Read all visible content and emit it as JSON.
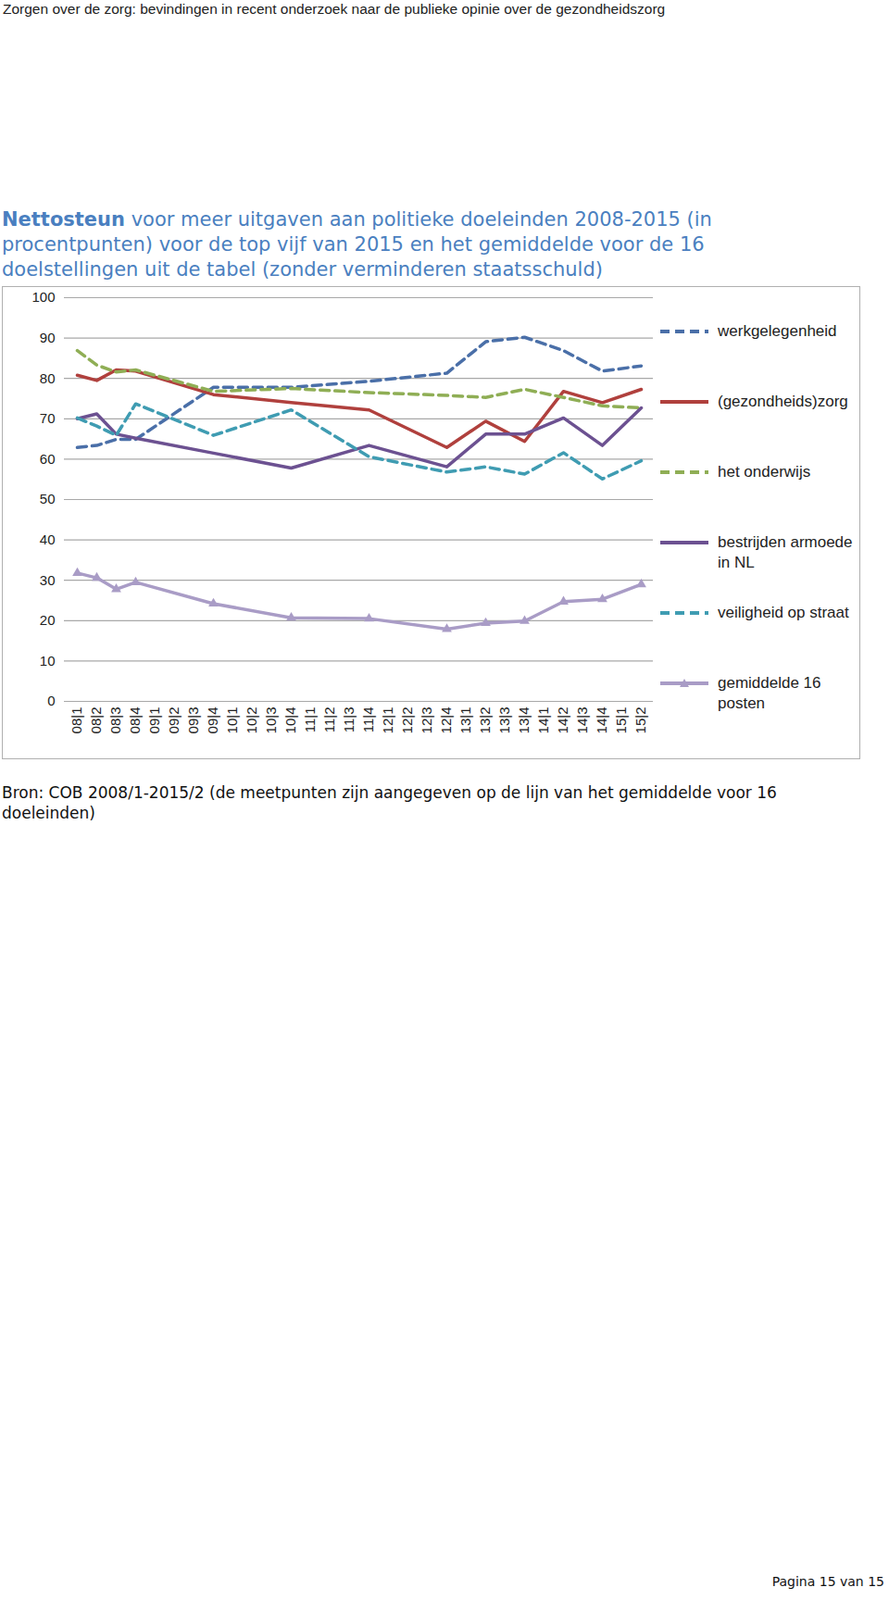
{
  "page": {
    "header": "Zorgen over de zorg: bevindingen in recent onderzoek naar de publieke opinie over de gezondheidszorg",
    "footer": "Pagina 15 van 15"
  },
  "chart_data": {
    "type": "line",
    "title": "Nettosteun voor meer uitgaven aan politieke doeleinden 2008-2015 (in procentpunten) voor de top vijf van 2015 en het gemiddelde voor de 16 doelstellingen uit de tabel (zonder verminderen staatsschuld)",
    "caption": "Bron: COB 2008/1-2015/2 (de meetpunten zijn aangegeven op de lijn van het gemiddelde voor 16 doeleinden)",
    "x": [
      "08|1",
      "08|2",
      "08|3",
      "08|4",
      "09|1",
      "09|2",
      "09|3",
      "09|4",
      "10|1",
      "10|2",
      "10|3",
      "10|4",
      "11|1",
      "11|2",
      "11|3",
      "11|4",
      "12|1",
      "12|2",
      "12|3",
      "12|4",
      "13|1",
      "13|2",
      "13|3",
      "13|4",
      "14|1",
      "14|2",
      "14|3",
      "14|4",
      "15|1",
      "15|2"
    ],
    "series": [
      {
        "name": "werkgelegenheid",
        "color": "#4a6fa8",
        "line_style": "dashed",
        "values": [
          62.9,
          63.4,
          64.9,
          64.9,
          null,
          null,
          null,
          77.8,
          null,
          null,
          null,
          77.8,
          null,
          null,
          null,
          79.3,
          null,
          null,
          null,
          81.3,
          null,
          89.1,
          null,
          90.2,
          null,
          86.9,
          null,
          81.8,
          null,
          83.1
        ]
      },
      {
        "name": "(gezondheids)zorg",
        "color": "#b0403d",
        "line_style": "solid",
        "values": [
          80.8,
          79.5,
          82.1,
          81.8,
          null,
          null,
          null,
          76.0,
          null,
          null,
          null,
          74.0,
          null,
          null,
          null,
          72.2,
          null,
          null,
          null,
          62.9,
          null,
          69.4,
          null,
          64.4,
          null,
          76.8,
          null,
          74.0,
          null,
          77.3
        ]
      },
      {
        "name": "het onderwijs",
        "color": "#8fae55",
        "line_style": "dashed",
        "values": [
          86.9,
          83.3,
          81.6,
          82.1,
          null,
          null,
          null,
          76.8,
          null,
          null,
          null,
          77.5,
          null,
          null,
          null,
          76.5,
          null,
          null,
          null,
          75.8,
          null,
          75.3,
          null,
          77.3,
          null,
          75.3,
          null,
          73.2,
          null,
          72.7
        ]
      },
      {
        "name": "bestrijden armoede in NL",
        "color": "#6c5191",
        "line_style": "solid",
        "values": [
          70.0,
          71.2,
          66.2,
          65.2,
          null,
          null,
          null,
          61.5,
          null,
          null,
          null,
          57.8,
          null,
          null,
          null,
          63.4,
          null,
          null,
          null,
          58.1,
          null,
          66.2,
          null,
          66.2,
          null,
          70.2,
          null,
          63.4,
          null,
          72.7
        ]
      },
      {
        "name": "veiligheid op straat",
        "color": "#3f9cb2",
        "line_style": "dashed",
        "values": [
          70.2,
          68.2,
          65.9,
          73.7,
          null,
          null,
          null,
          65.9,
          null,
          null,
          null,
          72.2,
          null,
          null,
          null,
          60.6,
          null,
          null,
          null,
          56.8,
          null,
          58.1,
          null,
          56.3,
          null,
          61.6,
          null,
          55.1,
          null,
          59.6
        ]
      },
      {
        "name": "gemiddelde 16 posten",
        "color": "#a99cc6",
        "line_style": "solid",
        "marker": "triangle",
        "values": [
          31.8,
          30.6,
          27.8,
          29.5,
          null,
          null,
          null,
          24.2,
          null,
          null,
          null,
          20.7,
          null,
          null,
          null,
          20.5,
          null,
          null,
          null,
          17.9,
          null,
          19.4,
          null,
          19.9,
          null,
          24.7,
          null,
          25.3,
          null,
          29.0
        ]
      }
    ],
    "ylim": [
      0,
      100
    ],
    "yticks": [
      0,
      10,
      20,
      30,
      40,
      50,
      60,
      70,
      80,
      90,
      100
    ],
    "grid": true,
    "legend": "right"
  }
}
